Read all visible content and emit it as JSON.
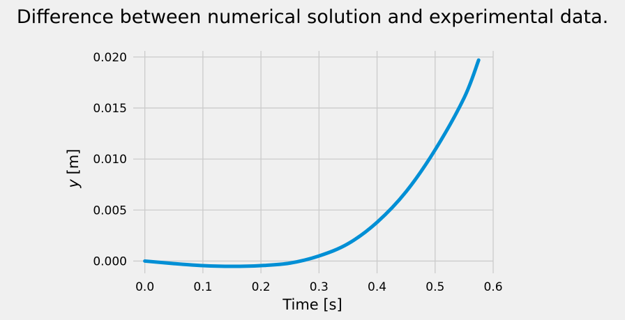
{
  "chart_data": {
    "type": "line",
    "title": "Difference between numerical solution and experimental data.",
    "xlabel": "Time [s]",
    "ylabel": "y [m]",
    "xlim": [
      -0.02,
      0.6
    ],
    "ylim": [
      -0.0012,
      0.0206
    ],
    "xticks": [
      0.0,
      0.1,
      0.2,
      0.3,
      0.4,
      0.5,
      0.6
    ],
    "xtick_labels": [
      "0.0",
      "0.1",
      "0.2",
      "0.3",
      "0.4",
      "0.5",
      "0.6"
    ],
    "yticks": [
      0.0,
      0.005,
      0.01,
      0.015,
      0.02
    ],
    "ytick_labels": [
      "0.000",
      "0.005",
      "0.010",
      "0.015",
      "0.020"
    ],
    "grid": true,
    "color": "#008fd5",
    "series": [
      {
        "x": [
          0.0,
          0.05,
          0.1,
          0.15,
          0.2,
          0.25,
          0.3,
          0.35,
          0.4,
          0.45,
          0.5,
          0.55,
          0.575
        ],
        "y": [
          0.0,
          -0.00025,
          -0.00045,
          -0.00052,
          -0.00045,
          -0.0002,
          0.0005,
          0.0017,
          0.0038,
          0.0068,
          0.0109,
          0.016,
          0.0197
        ]
      }
    ]
  }
}
